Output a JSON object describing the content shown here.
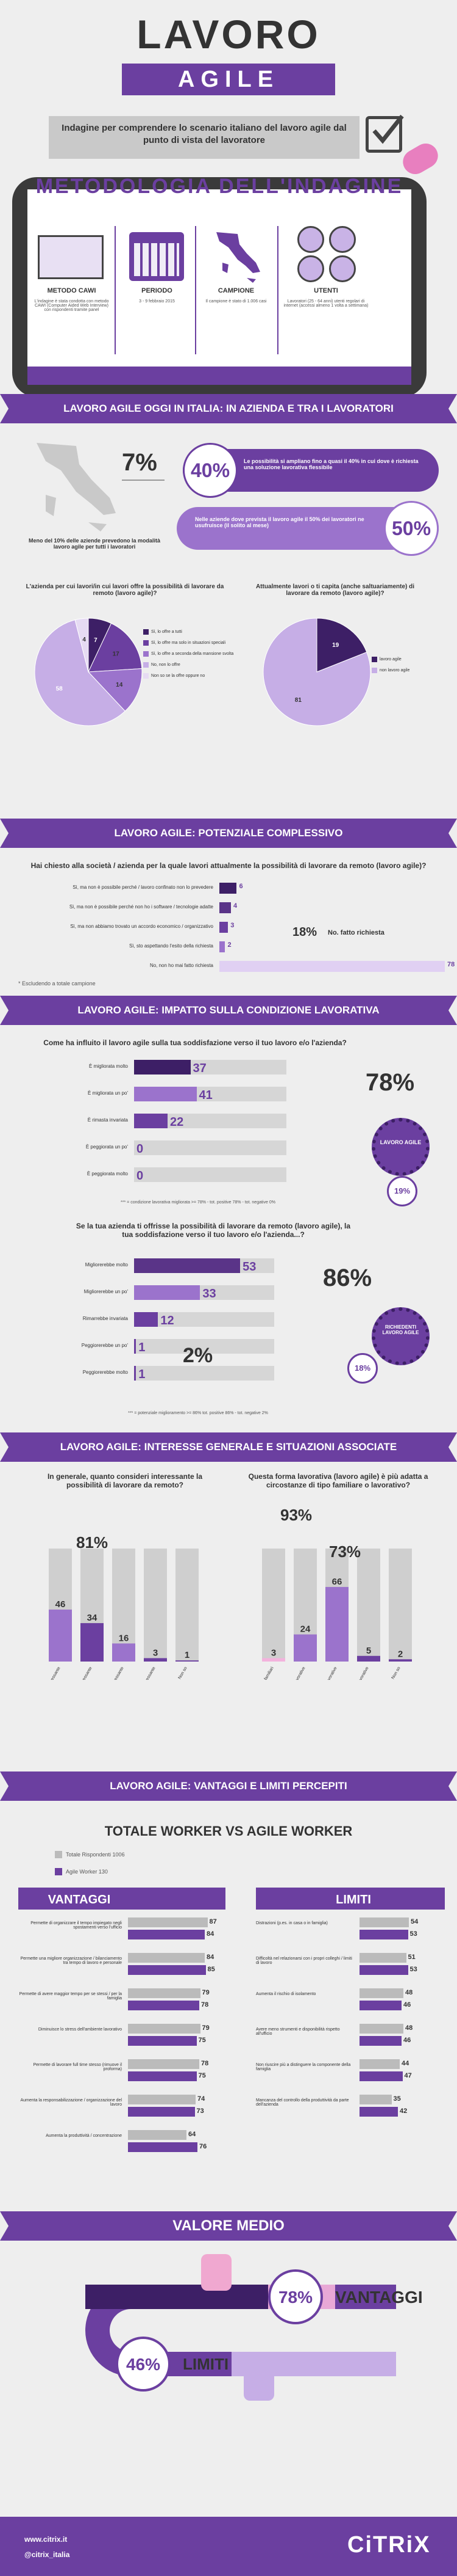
{
  "header": {
    "title": "LAVORO",
    "subtitle": "AGILE",
    "intro": "Indagine per comprendere lo scenario italiano del lavoro agile dal punto di vista del lavoratore"
  },
  "metodologia": {
    "title": "METODOLOGIA DELL'INDAGINE",
    "items": [
      {
        "label": "METODO CAWI",
        "text": "L'indagine è stata condotta con metodo CAWI (Computer Aided Web Interview) con rispondenti tramite panel"
      },
      {
        "label": "PERIODO",
        "text": "3 - 9 febbraio 2015"
      },
      {
        "label": "CAMPIONE",
        "text": "Il campione è stato di 1.006 casi"
      },
      {
        "label": "UTENTI",
        "text": "Lavoratori (25 - 64 anni) utenti regolari di internet (accessi almeno 1 volta a settimana)"
      }
    ]
  },
  "s1": {
    "banner": "LAVORO AGILE OGGI IN ITALIA: IN AZIENDA E TRA I LAVORATORI",
    "p7": "7%",
    "p7_text": "Meno del 10% delle aziende prevedono la modalità lavoro agile per tutti i lavoratori",
    "p40": "40%",
    "p40_text": "Le possibilità si ampliano fino a quasi il 40% in cui dove è richiesta una soluzione lavorativa flessibile",
    "p50": "50%",
    "p50_text": "Nelle aziende dove prevista il lavoro agile il 50% dei lavoratori ne usufruisce (il solito al mese)",
    "pie1_q": "L'azienda per cui lavori/in cui lavori offre la possibilità di lavorare da remoto (lavoro agile)?",
    "pie1_legend": [
      "Sì, lo offre a tutti",
      "Sì, lo offre ma solo in situazioni speciali",
      "Sì, lo offre a seconda della mansione svolta",
      "No, non lo offre",
      "Non so se la offre oppure no"
    ],
    "pie2_q": "Attualmente lavori o ti capita (anche saltuariamente) di lavorare da remoto (lavoro agile)?",
    "pie2_legend": [
      "lavoro agile",
      "non lavoro agile"
    ]
  },
  "s2": {
    "banner": "LAVORO AGILE: POTENZIALE COMPLESSIVO",
    "q": "Hai chiesto alla società / azienda per la quale lavori attualmente la possibilità di lavorare da remoto (lavoro agile)?",
    "note": "18%",
    "note_text": "No. fatto richiesta",
    "foot": "* Escludendo a totale campione"
  },
  "s3": {
    "banner": "LAVORO AGILE: IMPATTO SULLA CONDIZIONE LAVORATIVA",
    "q1": "Come ha influito il lavoro agile sulla tua soddisfazione verso il tuo lavoro e/o l'azienda?",
    "k1": "78%",
    "k2": "19%",
    "badge1": "LAVORO AGILE",
    "foot1": "*** = condizione lavorativa migliorata >= 78% - tot. positive 78% - tot. negative 0%",
    "q2": "Se la tua azienda ti offrisse la possibilità di lavorare da remoto (lavoro agile), la tua soddisfazione verso il tuo lavoro e/o l'azienda...?",
    "k3": "86%",
    "k4": "2%",
    "k5": "18%",
    "badge2": "RICHIEDENTI LAVORO AGILE",
    "foot2": "*** = potenziale miglioramento >= 86% tot. positive 86% - tot. negative 2%"
  },
  "s4": {
    "banner": "LAVORO AGILE: INTERESSE GENERALE E SITUAZIONI ASSOCIATE",
    "q1": "In generale, quanto consideri interessante la possibilità di lavorare da remoto?",
    "q2": "Questa forma lavorativa (lavoro agile) è più adatta a circostanze di tipo familiare o lavorativo?",
    "k1": "81%",
    "k2": "93%",
    "k3": "73%"
  },
  "s5": {
    "banner": "LAVORO AGILE: VANTAGGI E LIMITI PERCEPITI",
    "title": "TOTALE WORKER VS AGILE WORKER",
    "legend": [
      "Totale Rispondenti 1006",
      "Agile Worker 130"
    ],
    "vantaggi": "VANTAGGI",
    "limiti": "LIMITI"
  },
  "s6": {
    "title": "VALORE MEDIO",
    "v1": "78%",
    "v1_label": "VANTAGGI",
    "v2": "46%",
    "v2_label": "LIMITI"
  },
  "footer": {
    "site": "www.citrix.it",
    "twitter": "@citrix_italia",
    "brand": "CiTRiX"
  },
  "chart_data": [
    {
      "type": "pie",
      "title": "L'azienda per cui lavori/in cui lavori offre la possibilità di lavorare da remoto (lavoro agile)?",
      "labels": [
        "Sì, lo offre a tutti",
        "Sì, lo offre ma solo in situazioni speciali",
        "Sì, lo offre a seconda della mansione svolta",
        "No, non lo offre",
        "Non so se la offre oppure no"
      ],
      "values": [
        7,
        17,
        14,
        58,
        4
      ],
      "colors": [
        "#3d1f66",
        "#6b3fa0",
        "#9b73cc",
        "#c6aee6",
        "#e6dbf3"
      ]
    },
    {
      "type": "pie",
      "title": "Attualmente lavori o ti capita (anche saltuariamente) di lavorare da remoto (lavoro agile)?",
      "labels": [
        "lavoro agile",
        "non lavoro agile"
      ],
      "values": [
        19,
        81
      ],
      "colors": [
        "#3d1f66",
        "#c6aee6"
      ]
    },
    {
      "type": "bar",
      "title": "Hai chiesto alla società / azienda per la quale lavori attualmente la possibilità di lavorare da remoto?",
      "categories": [
        "Sì, ma non è possibile perché / lavoro confinato non lo prevedere",
        "Sì, ma non è possibile perché non ho i software / tecnologie adatte",
        "Sì, ma non abbiamo trovato un accordo economico / organizzativo",
        "Sì, sto aspettando l'esito della richiesta",
        "No, non ho mai fatto richiesta"
      ],
      "values": [
        6,
        4,
        3,
        2,
        78
      ]
    },
    {
      "type": "bar",
      "title": "Come ha influito il lavoro agile sulla tua soddisfazione verso il tuo lavoro e/o l'azienda?",
      "categories": [
        "È migliorata molto",
        "È migliorata un po'",
        "È rimasta invariata",
        "È peggiorata un po'",
        "È peggiorata molto"
      ],
      "values": [
        37,
        41,
        22,
        0,
        0
      ]
    },
    {
      "type": "bar",
      "title": "Se la tua azienda ti offrisse la possibilità di lavorare da remoto, la tua soddisfazione...?",
      "categories": [
        "Migliorerebbe molto",
        "Migliorerebbe un po'",
        "Rimarrebbe invariata",
        "Peggiorerebbe un po'",
        "Peggiorerebbe molto"
      ],
      "values": [
        53,
        33,
        12,
        1,
        1
      ]
    },
    {
      "type": "bar",
      "title": "In generale, quanto consideri interessante la possibilità di lavorare da remoto?",
      "categories": [
        "Estremamente interessante",
        "Abbastanza interessante",
        "Poco interessante",
        "Per niente interessante",
        "Non so"
      ],
      "values": [
        46,
        34,
        16,
        3,
        1
      ],
      "ylim": [
        0,
        100
      ]
    },
    {
      "type": "bar",
      "title": "Questa forma lavorativa è più adatta a circostanze di tipo familiare o lavorativo?",
      "categories": [
        "Solo familiari",
        "Sia familiari che lavorative",
        "Solo lavorative",
        "Né familiari né lavorative",
        "Non so"
      ],
      "values": [
        3,
        24,
        66,
        5,
        2
      ],
      "ylim": [
        0,
        100
      ]
    },
    {
      "type": "bar",
      "title": "VANTAGGI",
      "categories": [
        "Permette di organizzare il tempo impiegato negli spostamenti verso l'ufficio",
        "Permette una migliore organizzazione / bilanciamento tra tempo di lavoro e personale",
        "Permette di avere maggior tempo per se stessi / per la famiglia",
        "Diminuisce lo stress dell'ambiente lavorativo",
        "Permette di lavorare full time stesso (rimuove il proforma)",
        "Aumenta la responsabilizzazione / organizzazione del lavoro",
        "Aumenta la produttività / concentrazione"
      ],
      "series": [
        {
          "name": "Totale Rispondenti 1006",
          "values": [
            87,
            84,
            79,
            79,
            78,
            74,
            64
          ]
        },
        {
          "name": "Agile Worker 130",
          "values": [
            84,
            85,
            78,
            75,
            75,
            73,
            76
          ]
        }
      ]
    },
    {
      "type": "bar",
      "title": "LIMITI",
      "categories": [
        "Distrazioni (p.es. in casa o in famiglia)",
        "Difficoltà nel relazionarsi con i propri colleghi / limiti di lavoro",
        "Aumenta il rischio di isolamento",
        "Avere meno strumenti e disponibilità rispetto all'ufficio",
        "Non riuscire più a distinguere la componente della famiglia",
        "Mancanza del controllo della produttività da parte dell'azienda"
      ],
      "series": [
        {
          "name": "Totale Rispondenti 1006",
          "values": [
            54,
            51,
            48,
            48,
            44,
            35
          ]
        },
        {
          "name": "Agile Worker 130",
          "values": [
            53,
            53,
            46,
            46,
            47,
            42
          ]
        }
      ]
    }
  ]
}
